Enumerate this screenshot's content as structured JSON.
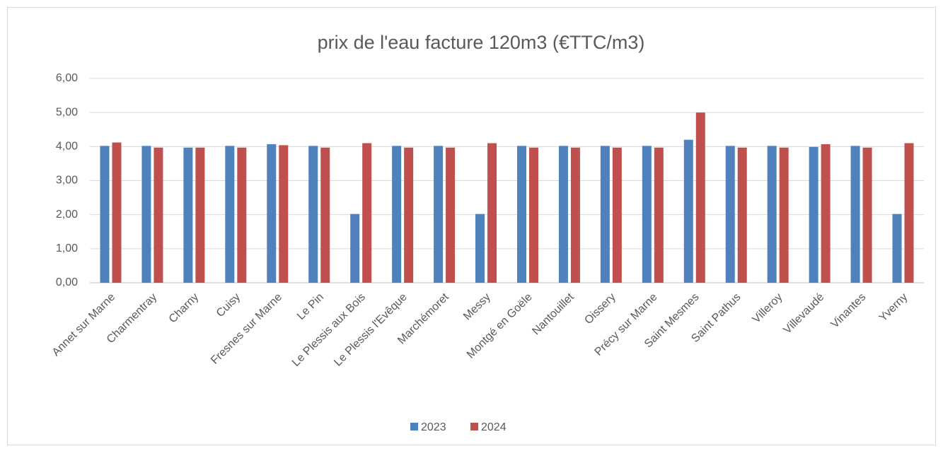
{
  "chart_data": {
    "type": "bar",
    "title": "prix de l'eau facture 120m3 (€TTC/m3)",
    "categories": [
      "Annet sur Marne",
      "Charmentray",
      "Charny",
      "Cuisy",
      "Fresnes sur Marne",
      "Le Pin",
      "Le Plessis aux Bois",
      "Le Plessis l'Evêque",
      "Marchémoret",
      "Messy",
      "Montgé en Goële",
      "Nantouillet",
      "Oissery",
      "Précy sur Marne",
      "Saint Mesmes",
      "Saint Pathus",
      "Villeroy",
      "Villevaudé",
      "Vinantes",
      "Yverny"
    ],
    "series": [
      {
        "name": "2023",
        "color": "#4f81bd",
        "values": [
          4.02,
          4.02,
          3.97,
          4.02,
          4.07,
          4.02,
          2.02,
          4.02,
          4.02,
          2.02,
          4.02,
          4.02,
          4.02,
          4.02,
          4.2,
          4.02,
          4.02,
          3.99,
          4.02,
          2.02
        ]
      },
      {
        "name": "2024",
        "color": "#c0504d",
        "values": [
          4.12,
          3.97,
          3.97,
          3.97,
          4.04,
          3.97,
          4.1,
          3.97,
          3.97,
          4.1,
          3.97,
          3.97,
          3.97,
          3.97,
          5.0,
          3.97,
          3.97,
          4.07,
          3.97,
          4.1
        ]
      }
    ],
    "ylim": [
      0,
      6
    ],
    "yticks": [
      {
        "value": 0,
        "label": "0,00"
      },
      {
        "value": 1,
        "label": "1,00"
      },
      {
        "value": 2,
        "label": "2,00"
      },
      {
        "value": 3,
        "label": "3,00"
      },
      {
        "value": 4,
        "label": "4,00"
      },
      {
        "value": 5,
        "label": "5,00"
      },
      {
        "value": 6,
        "label": "6,00"
      }
    ],
    "grid": true,
    "legend": "bottom"
  }
}
